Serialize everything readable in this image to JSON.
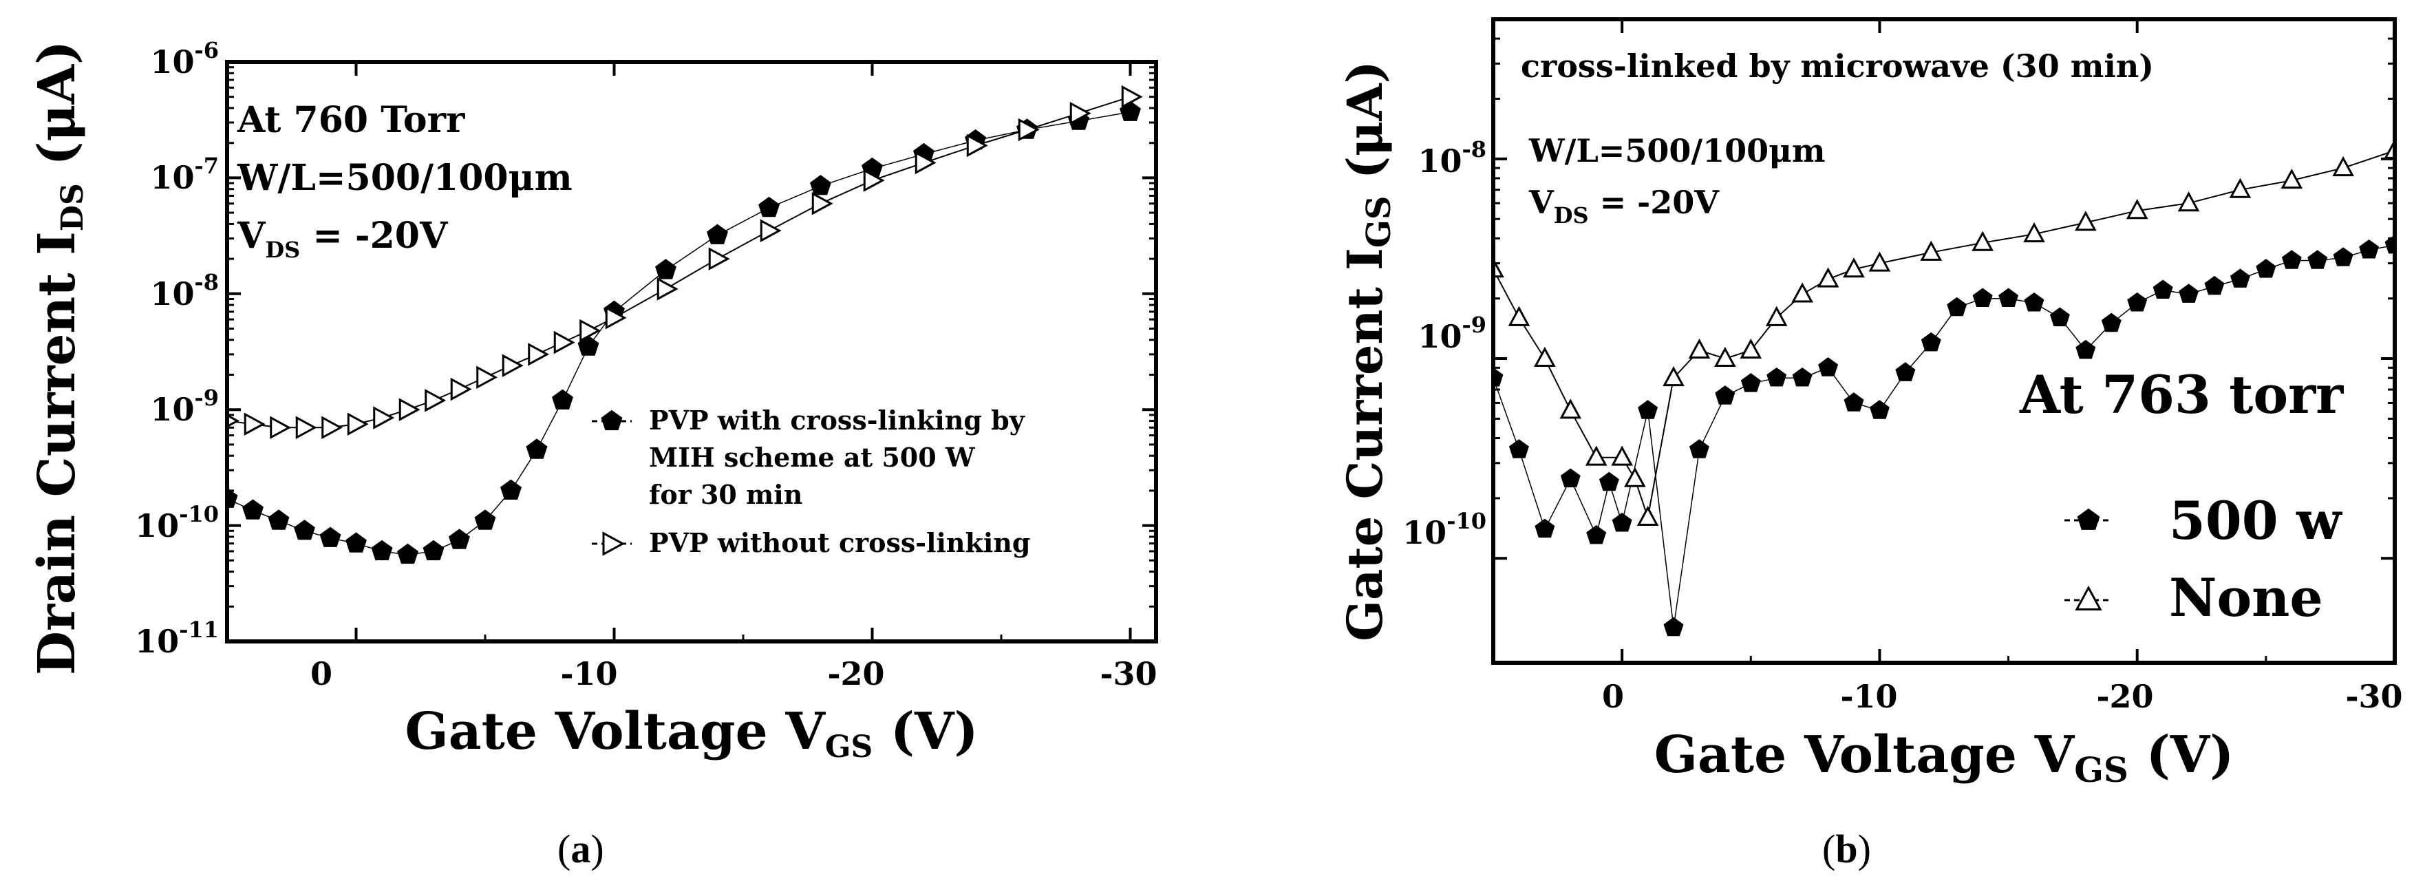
{
  "panels": [
    {
      "caption_open": "(",
      "caption_letter": "a",
      "caption_close": ")",
      "ylabel_main": "Drain Current I",
      "ylabel_sub": "DS",
      "ylabel_unit": " (μA)",
      "xlabel_main": "Gate Voltage V",
      "xlabel_sub": "GS",
      "xlabel_unit": " (V)",
      "annotation_line1": "At 760 Torr",
      "annotation_line2": "W/L=500/100μm",
      "annotation_line3_main": "V",
      "annotation_line3_sub": "DS",
      "annotation_line3_rest": " = -20V",
      "ytick_base": "10",
      "ytick_exponents": [
        "-6",
        "-7",
        "-8",
        "-9",
        "-10",
        "-11"
      ],
      "xtick_labels": [
        "0",
        "-10",
        "-20",
        "-30"
      ],
      "legend_filled_lines": [
        "PVP with cross-linking by",
        "MIH scheme at 500 W",
        "for 30 min"
      ],
      "legend_open_label": "PVP without cross-linking"
    },
    {
      "caption_open": "(",
      "caption_letter": "b",
      "caption_close": ")",
      "ylabel_main": "Gate Current I",
      "ylabel_sub": "GS",
      "ylabel_unit": " (μA)",
      "xlabel_main": "Gate Voltage V",
      "xlabel_sub": "GS",
      "xlabel_unit": " (V)",
      "annotation_title": "cross-linked by microwave (30 min)",
      "annotation_line1": "W/L=500/100μm",
      "annotation_line2_main": "V",
      "annotation_line2_sub": "DS",
      "annotation_line2_rest": " = -20V",
      "annotation_big": "At 763 torr",
      "ytick_base": "10",
      "ytick_exponents": [
        "-8",
        "-9",
        "-10"
      ],
      "xtick_labels": [
        "0",
        "-10",
        "-20",
        "-30"
      ],
      "legend_filled_label": "500 w",
      "legend_open_label": "None"
    }
  ],
  "chart_data": [
    {
      "type": "scatter",
      "title": "",
      "xlabel": "Gate Voltage V_GS (V)",
      "ylabel": "Drain Current I_DS (μA)",
      "x_reversed": true,
      "xlim": [
        5,
        -31
      ],
      "ylim": [
        1e-11,
        1e-06
      ],
      "yscale": "log",
      "series": [
        {
          "name": "PVP with cross-linking by MIH scheme at 500 W for 30 min",
          "marker": "filled-pentagon",
          "x": [
            5,
            4,
            3,
            2,
            1,
            0,
            -1,
            -2,
            -3,
            -4,
            -5,
            -6,
            -7,
            -8,
            -9,
            -10,
            -12,
            -14,
            -16,
            -18,
            -20,
            -22,
            -24,
            -26,
            -28,
            -30
          ],
          "y": [
            1.7e-10,
            1.35e-10,
            1.1e-10,
            9e-11,
            7.8e-11,
            7e-11,
            6e-11,
            5.6e-11,
            6e-11,
            7.5e-11,
            1.1e-10,
            2e-10,
            4.5e-10,
            1.2e-09,
            3.5e-09,
            7e-09,
            1.6e-08,
            3.2e-08,
            5.5e-08,
            8.5e-08,
            1.2e-07,
            1.6e-07,
            2.1e-07,
            2.6e-07,
            3.1e-07,
            3.7e-07
          ]
        },
        {
          "name": "PVP without cross-linking",
          "marker": "open-triangle-right",
          "x": [
            5,
            4,
            3,
            2,
            1,
            0,
            -1,
            -2,
            -3,
            -4,
            -5,
            -6,
            -7,
            -8,
            -9,
            -10,
            -12,
            -14,
            -16,
            -18,
            -20,
            -22,
            -24,
            -26,
            -28,
            -30
          ],
          "y": [
            8e-10,
            7.5e-10,
            7e-10,
            7e-10,
            7e-10,
            7.5e-10,
            8.5e-10,
            1e-09,
            1.2e-09,
            1.5e-09,
            1.9e-09,
            2.4e-09,
            3e-09,
            3.8e-09,
            4.8e-09,
            6.2e-09,
            1.1e-08,
            2e-08,
            3.5e-08,
            6e-08,
            9.5e-08,
            1.35e-07,
            1.9e-07,
            2.6e-07,
            3.6e-07,
            5e-07
          ]
        }
      ]
    },
    {
      "type": "scatter",
      "title": "",
      "xlabel": "Gate Voltage V_GS (V)",
      "ylabel": "Gate Current I_GS (μA)",
      "x_reversed": true,
      "xlim": [
        5,
        -30
      ],
      "ylim": [
        3e-11,
        5e-08
      ],
      "yscale": "log",
      "series": [
        {
          "name": "500 w",
          "marker": "filled-pentagon",
          "x": [
            5,
            4,
            3,
            2,
            1,
            0.5,
            0,
            -1,
            -2,
            -3,
            -4,
            -5,
            -6,
            -7,
            -8,
            -9,
            -10,
            -11,
            -12,
            -13,
            -14,
            -15,
            -16,
            -17,
            -18,
            -19,
            -20,
            -21,
            -22,
            -23,
            -24,
            -25,
            -26,
            -27,
            -28,
            -29,
            -30
          ],
          "y": [
            8e-10,
            3.5e-10,
            1.4e-10,
            2.5e-10,
            1.3e-10,
            2.4e-10,
            1.5e-10,
            5.5e-10,
            4.5e-11,
            3.5e-10,
            6.5e-10,
            7.5e-10,
            8e-10,
            8e-10,
            9e-10,
            6e-10,
            5.5e-10,
            8.5e-10,
            1.2e-09,
            1.8e-09,
            2e-09,
            2e-09,
            1.9e-09,
            1.6e-09,
            1.1e-09,
            1.5e-09,
            1.9e-09,
            2.2e-09,
            2.1e-09,
            2.3e-09,
            2.5e-09,
            2.8e-09,
            3.1e-09,
            3.1e-09,
            3.2e-09,
            3.5e-09,
            3.7e-09
          ]
        },
        {
          "name": "None",
          "marker": "open-triangle-up",
          "x": [
            5,
            4,
            3,
            2,
            1,
            0,
            -0.5,
            -1,
            -2,
            -3,
            -4,
            -5,
            -6,
            -7,
            -8,
            -9,
            -10,
            -12,
            -14,
            -16,
            -18,
            -20,
            -22,
            -24,
            -26,
            -28,
            -30
          ],
          "y": [
            2.8e-09,
            1.6e-09,
            1e-09,
            5.5e-10,
            3.2e-10,
            3.2e-10,
            2.5e-10,
            1.6e-10,
            8e-10,
            1.1e-09,
            1e-09,
            1.1e-09,
            1.6e-09,
            2.1e-09,
            2.5e-09,
            2.8e-09,
            3e-09,
            3.4e-09,
            3.8e-09,
            4.2e-09,
            4.8e-09,
            5.5e-09,
            6e-09,
            7e-09,
            7.8e-09,
            9e-09,
            1.1e-08
          ]
        }
      ]
    }
  ]
}
